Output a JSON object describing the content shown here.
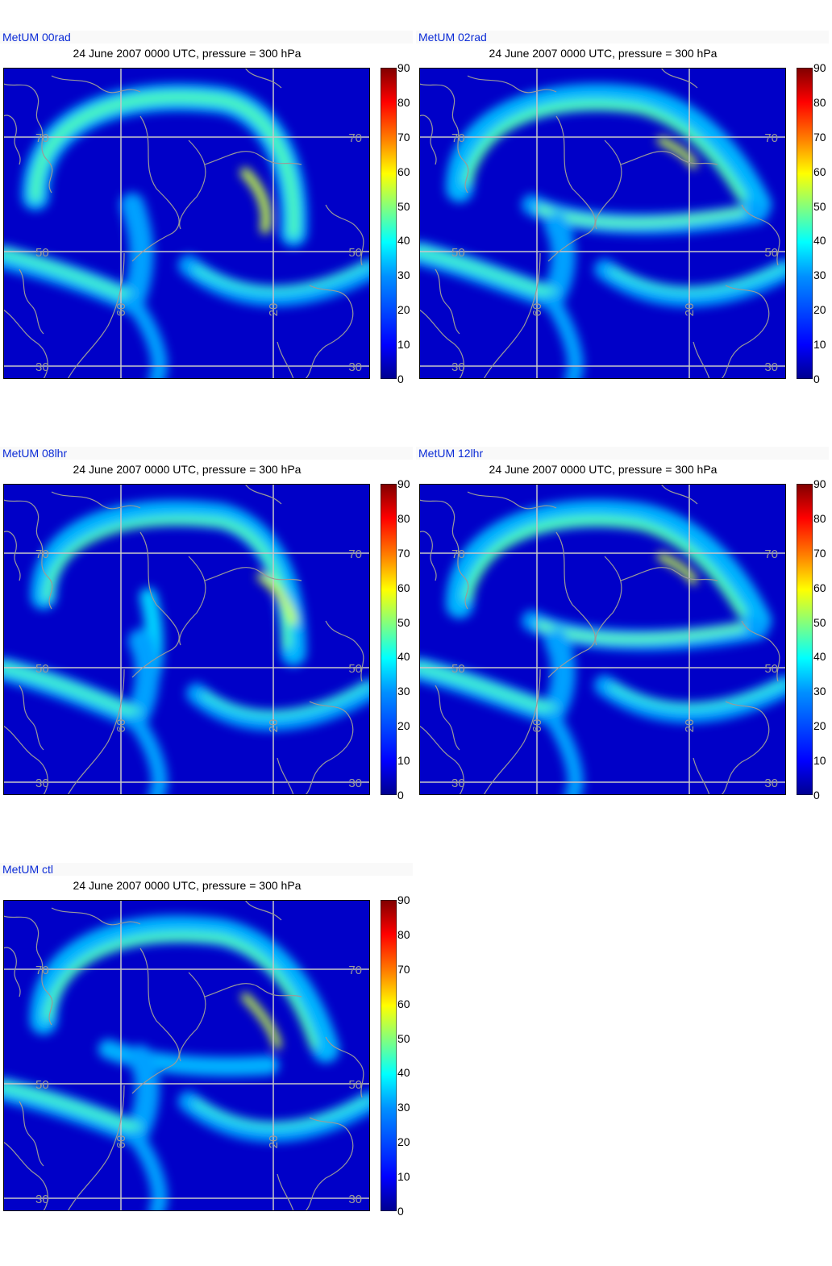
{
  "panels": [
    {
      "run": "MetUM 00rad",
      "title": "24 June 2007 0000 UTC, pressure = 300 hPa"
    },
    {
      "run": "MetUM 02rad",
      "title": "24 June 2007 0000 UTC, pressure = 300 hPa"
    },
    {
      "run": "MetUM 08lhr",
      "title": "24 June 2007 0000 UTC, pressure = 300 hPa"
    },
    {
      "run": "MetUM 12lhr",
      "title": "24 June 2007 0000 UTC, pressure = 300 hPa"
    },
    {
      "run": "MetUM ctl",
      "title": "24 June 2007 0000 UTC, pressure = 300 hPa"
    }
  ],
  "colorbar_ticks": [
    "0",
    "10",
    "20",
    "30",
    "40",
    "50",
    "60",
    "70",
    "80",
    "90"
  ],
  "grid_labels": {
    "lat": [
      "70",
      "50",
      "30"
    ],
    "lon": [
      "60",
      "20"
    ]
  },
  "colors": {
    "run_label": "#0b2bd6",
    "coast": "#9a9a9a",
    "grid": "#c8c8c8"
  }
}
